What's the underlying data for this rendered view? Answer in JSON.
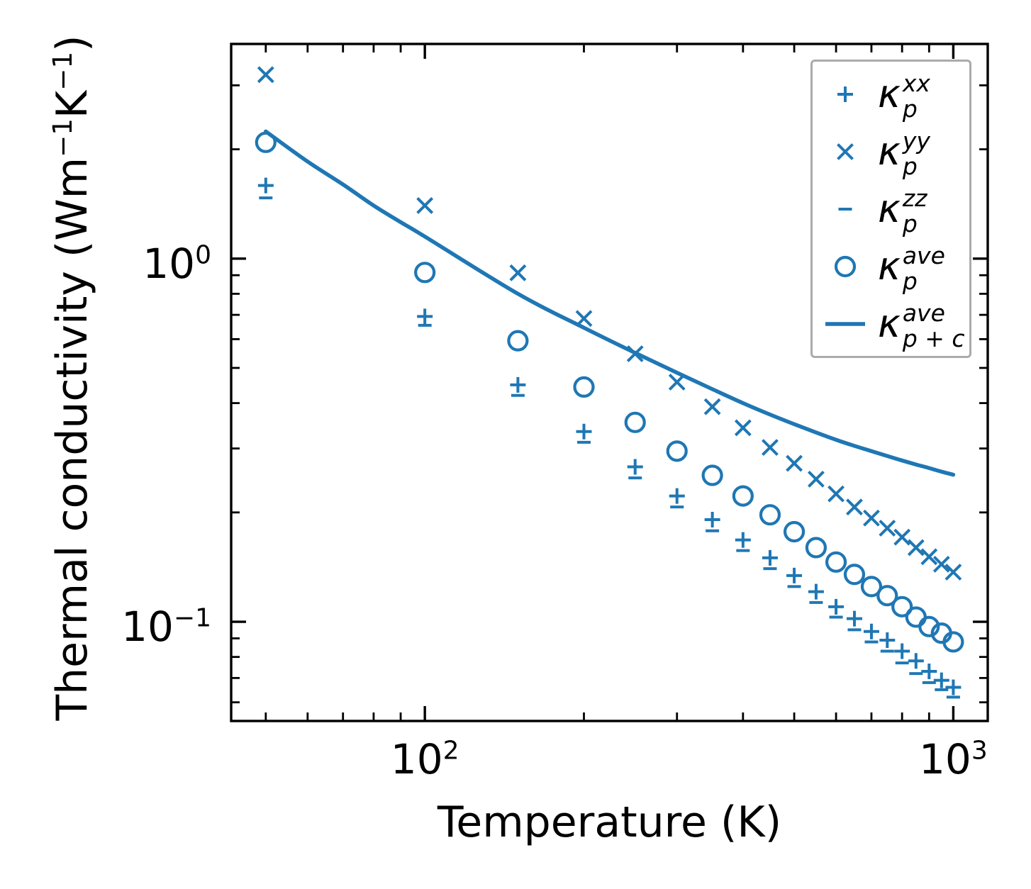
{
  "chart_data": {
    "type": "scatter",
    "title": "",
    "xlabel": "Temperature (K)",
    "ylabel": "Thermal conductivity (Wm⁻¹K⁻¹)",
    "ylabel_parts": [
      "Thermal conductivity (Wm",
      "−1",
      "K",
      "−1",
      ")"
    ],
    "x_scale": "log",
    "y_scale": "log",
    "xlim": [
      43,
      1162
    ],
    "ylim": [
      0.0533,
      3.9
    ],
    "x_major_ticks": [
      100,
      1000
    ],
    "y_major_ticks": [
      1,
      0.1
    ],
    "grid": false,
    "legend_position": "upper right",
    "color": "#1f77b4",
    "x": [
      50,
      100,
      150,
      200,
      250,
      300,
      350,
      400,
      450,
      500,
      550,
      600,
      650,
      700,
      750,
      800,
      850,
      900,
      950,
      1000
    ],
    "series": [
      {
        "name": "kappa_p_xx",
        "marker": "plus",
        "values": [
          1.59,
          0.693,
          0.449,
          0.334,
          0.267,
          0.222,
          0.191,
          0.168,
          0.15,
          0.134,
          0.121,
          0.11,
          0.102,
          0.094,
          0.089,
          0.083,
          0.078,
          0.073,
          0.069,
          0.066
        ]
      },
      {
        "name": "kappa_p_yy",
        "marker": "x",
        "values": [
          3.21,
          1.4,
          0.914,
          0.684,
          0.547,
          0.457,
          0.391,
          0.342,
          0.302,
          0.273,
          0.247,
          0.225,
          0.207,
          0.193,
          0.181,
          0.171,
          0.16,
          0.151,
          0.144,
          0.137
        ]
      },
      {
        "name": "kappa_p_zz",
        "marker": "minus",
        "values": [
          1.47,
          0.655,
          0.42,
          0.312,
          0.249,
          0.207,
          0.178,
          0.157,
          0.14,
          0.125,
          0.113,
          0.103,
          0.095,
          0.088,
          0.083,
          0.077,
          0.072,
          0.068,
          0.065,
          0.062
        ]
      },
      {
        "name": "kappa_p_ave",
        "marker": "circle",
        "values": [
          2.09,
          0.916,
          0.594,
          0.443,
          0.354,
          0.295,
          0.253,
          0.222,
          0.197,
          0.177,
          0.16,
          0.146,
          0.135,
          0.125,
          0.118,
          0.11,
          0.103,
          0.097,
          0.093,
          0.088
        ]
      }
    ],
    "line_series": {
      "name": "kappa_p_plus_c_ave",
      "marker": "line",
      "x": [
        50,
        60,
        70,
        80,
        90,
        100,
        150,
        200,
        250,
        300,
        350,
        400,
        450,
        500,
        550,
        600,
        650,
        700,
        750,
        800,
        850,
        900,
        950,
        1000
      ],
      "values": [
        2.24,
        1.85,
        1.6,
        1.4,
        1.26,
        1.15,
        0.8,
        0.645,
        0.55,
        0.485,
        0.437,
        0.4,
        0.372,
        0.35,
        0.332,
        0.317,
        0.305,
        0.295,
        0.286,
        0.278,
        0.271,
        0.265,
        0.259,
        0.254
      ]
    },
    "legend": {
      "items": [
        {
          "marker": "plus",
          "base": "κ",
          "sup": "xx",
          "sub": "p"
        },
        {
          "marker": "x",
          "base": "κ",
          "sup": "yy",
          "sub": "p"
        },
        {
          "marker": "minus",
          "base": "κ",
          "sup": "zz",
          "sub": "p"
        },
        {
          "marker": "circle",
          "base": "κ",
          "sup": "ave",
          "sub": "p"
        },
        {
          "marker": "line",
          "base": "κ",
          "sup": "ave",
          "sub": "p + c"
        }
      ]
    }
  }
}
